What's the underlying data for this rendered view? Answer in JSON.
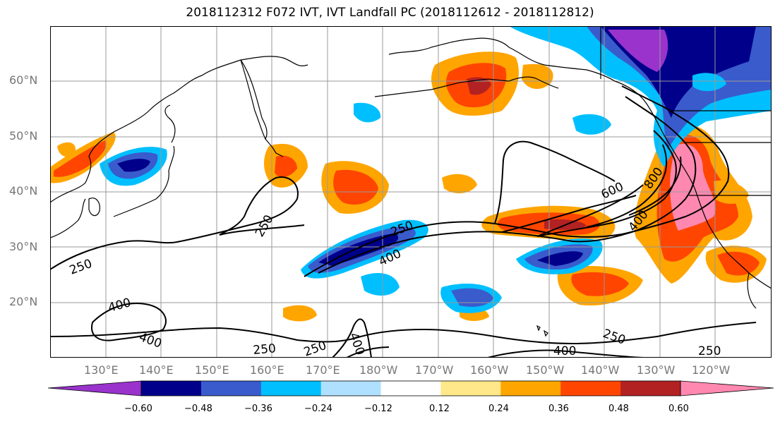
{
  "title": "2018112312 F072 IVT, IVT Landfall PC (2018112612 - 2018112812)",
  "lat_labels": [
    "60°N",
    "50°N",
    "40°N",
    "30°N",
    "20°N"
  ],
  "lon_labels": [
    "130°E",
    "140°E",
    "150°E",
    "160°E",
    "170°E",
    "180°W",
    "170°W",
    "160°W",
    "150°W",
    "140°W",
    "130°W",
    "120°W"
  ],
  "contour_labels": {
    "c250_a": "250",
    "c250_b": "250",
    "c250_c": "250",
    "c250_d": "250",
    "c250_e": "250",
    "c250_f": "250",
    "c250_g": "250",
    "c400_a": "400",
    "c400_b": "400",
    "c400_c": "400",
    "c400_d": "400",
    "c400_e": "400",
    "c400_f": "400",
    "c600_a": "600",
    "c800_a": "800"
  },
  "colorbar": {
    "colors": [
      "#9933cc",
      "#00008b",
      "#3a5bcc",
      "#00bfff",
      "#b0e0ff",
      "#ffffff",
      "#ffe88a",
      "#ffa500",
      "#ff4500",
      "#b22222",
      "#ff88b0"
    ],
    "tick_labels": [
      "−0.60",
      "−0.48",
      "−0.36",
      "−0.24",
      "−0.12",
      "0.12",
      "0.24",
      "0.36",
      "0.48",
      "0.60"
    ]
  }
}
